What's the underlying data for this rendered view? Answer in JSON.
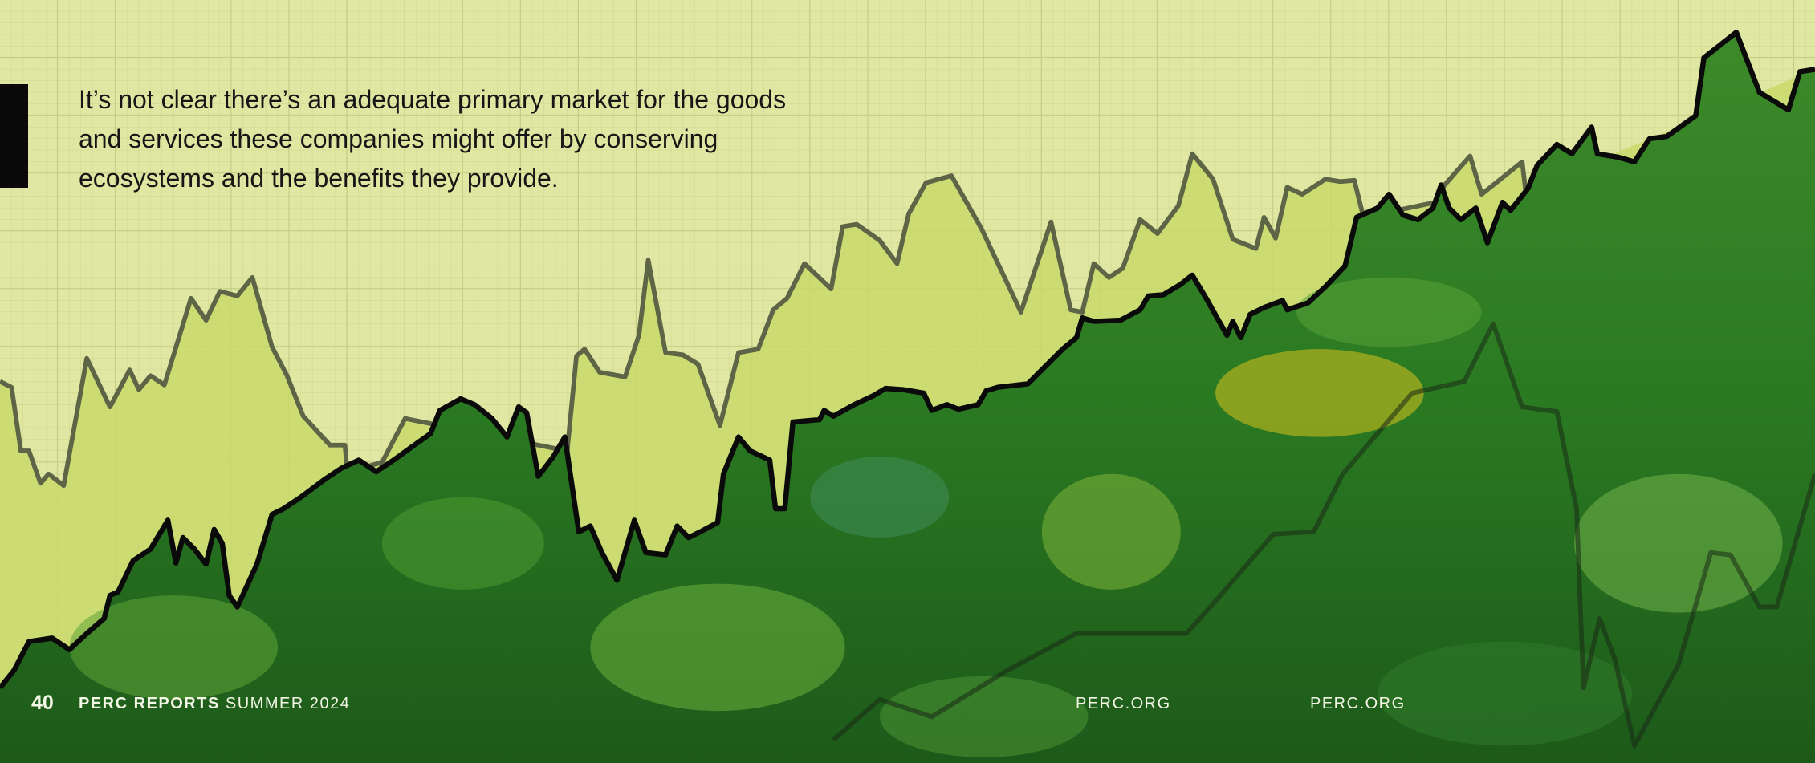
{
  "quote": "It’s not clear there’s an adequate primary market for the goods and services these companies might offer by conserving ecosystems and the benefits they provide.",
  "footer": {
    "page_number": "40",
    "publication": "PERC REPORTS",
    "issue": "SUMMER 2024",
    "url_left": "PERC.ORG",
    "url_right": "PERC.ORG"
  }
}
